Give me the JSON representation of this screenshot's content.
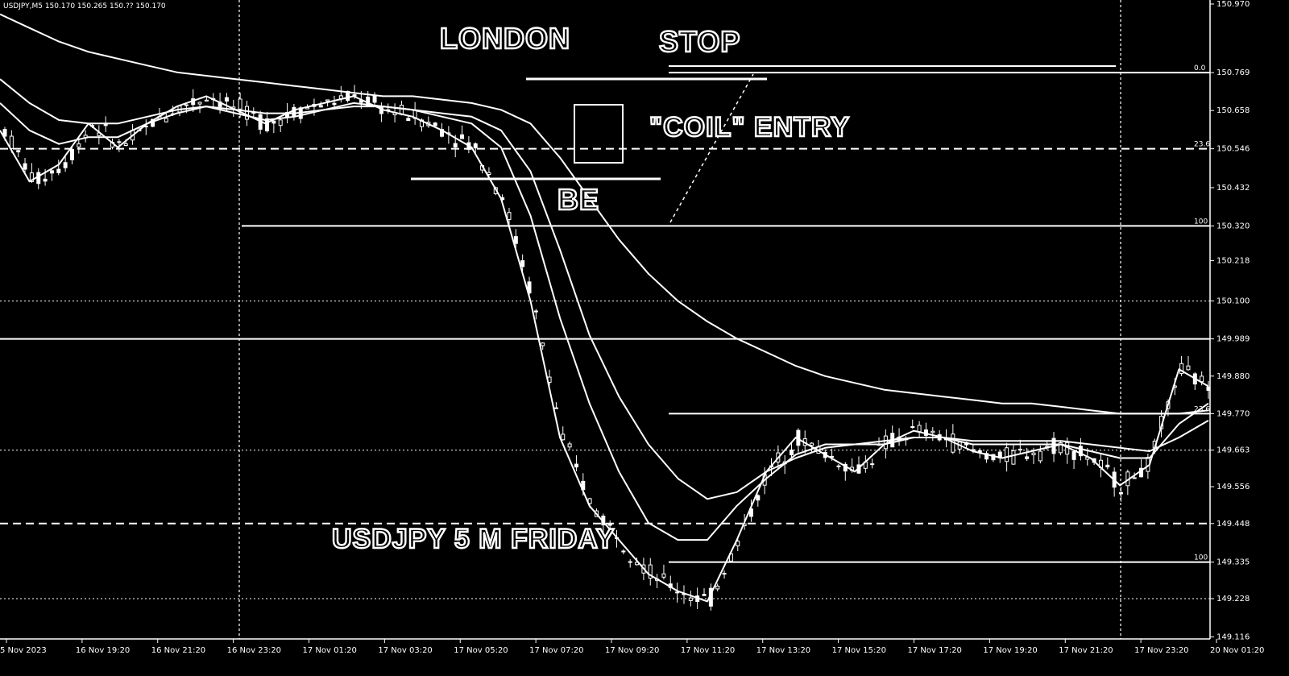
{
  "header": {
    "symbol_info": "USDJPY,M5  150.170 150.265 150.?? 150.170"
  },
  "annotations": {
    "london": "LONDON",
    "stop": "STOP",
    "coil_entry": "\"COIL\" ENTRY",
    "be": "BE",
    "title": "USDJPY 5 M FRIDAY"
  },
  "chart_data": {
    "type": "line",
    "title": "USDJPY 5 M FRIDAY",
    "xlabel": "",
    "ylabel": "",
    "ylim": [
      149.11,
      150.97
    ],
    "y_ticks": [
      "150.970",
      "150.769",
      "150.658",
      "150.546",
      "150.432",
      "150.320",
      "150.218",
      "150.100",
      "149.989",
      "149.880",
      "149.770",
      "149.663",
      "149.556",
      "149.448",
      "149.335",
      "149.228",
      "149.116"
    ],
    "x_ticks": [
      "5 Nov 2023",
      "16 Nov 19:20",
      "16 Nov 21:20",
      "16 Nov 23:20",
      "17 Nov 01:20",
      "17 Nov 03:20",
      "17 Nov 05:20",
      "17 Nov 07:20",
      "17 Nov 09:20",
      "17 Nov 11:20",
      "17 Nov 13:20",
      "17 Nov 15:20",
      "17 Nov 17:20",
      "17 Nov 19:20",
      "17 Nov 21:20",
      "17 Nov 23:20",
      "20 Nov 01:20"
    ],
    "fib_labels": [
      "0.0",
      "23.6",
      "100",
      "23.6",
      "100"
    ],
    "horizontal_levels": [
      150.769,
      150.546,
      150.32,
      149.989,
      149.77,
      149.335
    ],
    "series": [
      {
        "values": [
          150.6,
          150.45,
          150.5,
          150.62,
          150.55,
          150.62,
          150.67,
          150.7,
          150.66,
          150.62,
          150.66,
          150.68,
          150.7,
          150.66,
          150.64,
          150.6,
          150.55,
          150.4,
          150.1,
          149.7,
          149.5,
          149.4,
          149.3,
          149.25,
          149.22,
          149.4,
          149.6,
          149.7,
          149.65,
          149.6,
          149.68,
          149.72,
          149.7,
          149.66,
          149.64,
          149.66,
          149.68,
          149.64,
          149.56,
          149.62,
          149.9,
          149.85
        ]
      },
      {
        "values": [
          150.68,
          150.6,
          150.56,
          150.58,
          150.58,
          150.62,
          150.65,
          150.67,
          150.65,
          150.63,
          150.64,
          150.66,
          150.68,
          150.67,
          150.66,
          150.64,
          150.62,
          150.55,
          150.35,
          150.05,
          149.8,
          149.6,
          149.45,
          149.4,
          149.4,
          149.5,
          149.58,
          149.65,
          149.68,
          149.68,
          149.68,
          149.7,
          149.7,
          149.68,
          149.68,
          149.68,
          149.68,
          149.66,
          149.64,
          149.64,
          149.74,
          149.8
        ]
      },
      {
        "values": [
          150.75,
          150.68,
          150.63,
          150.62,
          150.62,
          150.64,
          150.66,
          150.67,
          150.66,
          150.65,
          150.65,
          150.66,
          150.67,
          150.67,
          150.66,
          150.65,
          150.64,
          150.6,
          150.48,
          150.25,
          150.0,
          149.82,
          149.68,
          149.58,
          149.52,
          149.54,
          149.6,
          149.64,
          149.67,
          149.68,
          149.69,
          149.7,
          149.7,
          149.69,
          149.69,
          149.69,
          149.69,
          149.68,
          149.67,
          149.66,
          149.7,
          149.75
        ]
      },
      {
        "values": [
          150.94,
          150.9,
          150.86,
          150.83,
          150.81,
          150.79,
          150.77,
          150.76,
          150.75,
          150.74,
          150.73,
          150.72,
          150.71,
          150.7,
          150.7,
          150.69,
          150.68,
          150.66,
          150.62,
          150.52,
          150.4,
          150.28,
          150.18,
          150.1,
          150.04,
          149.99,
          149.95,
          149.91,
          149.88,
          149.86,
          149.84,
          149.83,
          149.82,
          149.81,
          149.8,
          149.8,
          149.79,
          149.78,
          149.77,
          149.77,
          149.77,
          149.78
        ]
      }
    ]
  }
}
